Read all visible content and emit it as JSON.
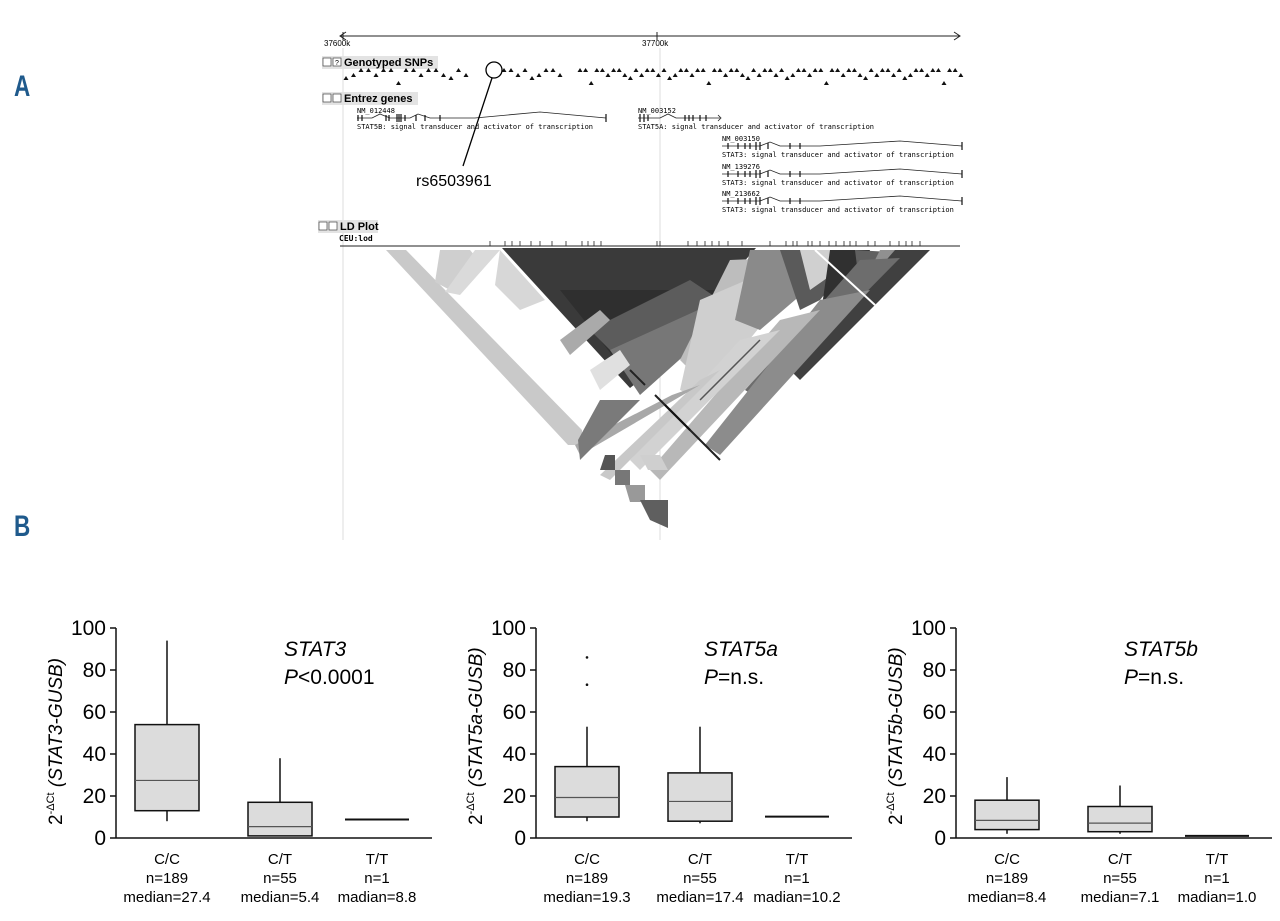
{
  "panels": {
    "a": "A",
    "b": "B"
  },
  "browser": {
    "ruler": {
      "left": "37600k",
      "mid": "37700k"
    },
    "tracks": {
      "snps": "Genotyped SNPs",
      "genes": "Entrez genes",
      "ld": "LD Plot",
      "ld_sub": "CEU:lod"
    },
    "track_btn_minus": "-",
    "track_btn_q": "?",
    "snp_callout": "rs6503961",
    "genes": [
      {
        "id": "NM_012448",
        "desc": "STAT5B: signal transducer and activator of transcription"
      },
      {
        "id": "NM_003152",
        "desc": "STAT5A: signal transducer and activator of transcription"
      },
      {
        "id": "NM_003150",
        "desc": "STAT3: signal transducer and activator of transcription"
      },
      {
        "id": "NM_139276",
        "desc": "STAT3: signal transducer and activator of transcription"
      },
      {
        "id": "NM_213662",
        "desc": "STAT3: signal transducer and activator of transcription"
      }
    ]
  },
  "chart_data": [
    {
      "type": "box",
      "gene": "STAT3",
      "pvalue_prefix": "P",
      "pvalue_rest": "<0.0001",
      "ylabel_prefix": "2",
      "ylabel_sup": "-ΔCt",
      "ylabel_paren": "(STAT3-GUSB)",
      "ylim": [
        0,
        100
      ],
      "yticks": [
        "0",
        "20",
        "40",
        "60",
        "80",
        "100"
      ],
      "groups": [
        {
          "genotype": "C/C",
          "n": "n=189",
          "median_label": "median=27.4",
          "whisker_low": 8,
          "q1": 13,
          "median": 27.4,
          "q3": 54,
          "whisker_high": 94,
          "outliers": []
        },
        {
          "genotype": "C/T",
          "n": "n=55",
          "median_label": "median=5.4",
          "whisker_low": 1,
          "q1": 1,
          "median": 5.4,
          "q3": 17,
          "whisker_high": 38,
          "outliers": []
        },
        {
          "genotype": "T/T",
          "n": "n=1",
          "median_label": "madian=8.8",
          "whisker_low": 8.8,
          "q1": 8.8,
          "median": 8.8,
          "q3": 8.8,
          "whisker_high": 8.8,
          "outliers": []
        }
      ]
    },
    {
      "type": "box",
      "gene": "STAT5a",
      "pvalue_prefix": "P",
      "pvalue_rest": "=n.s.",
      "ylabel_prefix": "2",
      "ylabel_sup": "-ΔCt",
      "ylabel_paren": "(STAT5a-GUSB)",
      "ylim": [
        0,
        100
      ],
      "yticks": [
        "0",
        "20",
        "40",
        "60",
        "80",
        "100"
      ],
      "groups": [
        {
          "genotype": "C/C",
          "n": "n=189",
          "median_label": "median=19.3",
          "whisker_low": 8,
          "q1": 10,
          "median": 19.3,
          "q3": 34,
          "whisker_high": 53,
          "outliers": [
            73,
            86
          ]
        },
        {
          "genotype": "C/T",
          "n": "n=55",
          "median_label": "median=17.4",
          "whisker_low": 7,
          "q1": 8,
          "median": 17.4,
          "q3": 31,
          "whisker_high": 53,
          "outliers": []
        },
        {
          "genotype": "T/T",
          "n": "n=1",
          "median_label": "madian=10.2",
          "whisker_low": 10.2,
          "q1": 10.2,
          "median": 10.2,
          "q3": 10.2,
          "whisker_high": 10.2,
          "outliers": []
        }
      ]
    },
    {
      "type": "box",
      "gene": "STAT5b",
      "pvalue_prefix": "P",
      "pvalue_rest": "=n.s.",
      "ylabel_prefix": "2",
      "ylabel_sup": "-ΔCt",
      "ylabel_paren": "(STAT5b-GUSB)",
      "ylim": [
        0,
        100
      ],
      "yticks": [
        "0",
        "20",
        "40",
        "60",
        "80",
        "100"
      ],
      "groups": [
        {
          "genotype": "C/C",
          "n": "n=189",
          "median_label": "median=8.4",
          "whisker_low": 2,
          "q1": 4,
          "median": 8.4,
          "q3": 18,
          "whisker_high": 29,
          "outliers": []
        },
        {
          "genotype": "C/T",
          "n": "n=55",
          "median_label": "median=7.1",
          "whisker_low": 2,
          "q1": 3,
          "median": 7.1,
          "q3": 15,
          "whisker_high": 25,
          "outliers": []
        },
        {
          "genotype": "T/T",
          "n": "n=1",
          "median_label": "madian=1.0",
          "whisker_low": 1.0,
          "q1": 1.0,
          "median": 1.0,
          "q3": 1.0,
          "whisker_high": 1.0,
          "outliers": []
        }
      ]
    }
  ]
}
